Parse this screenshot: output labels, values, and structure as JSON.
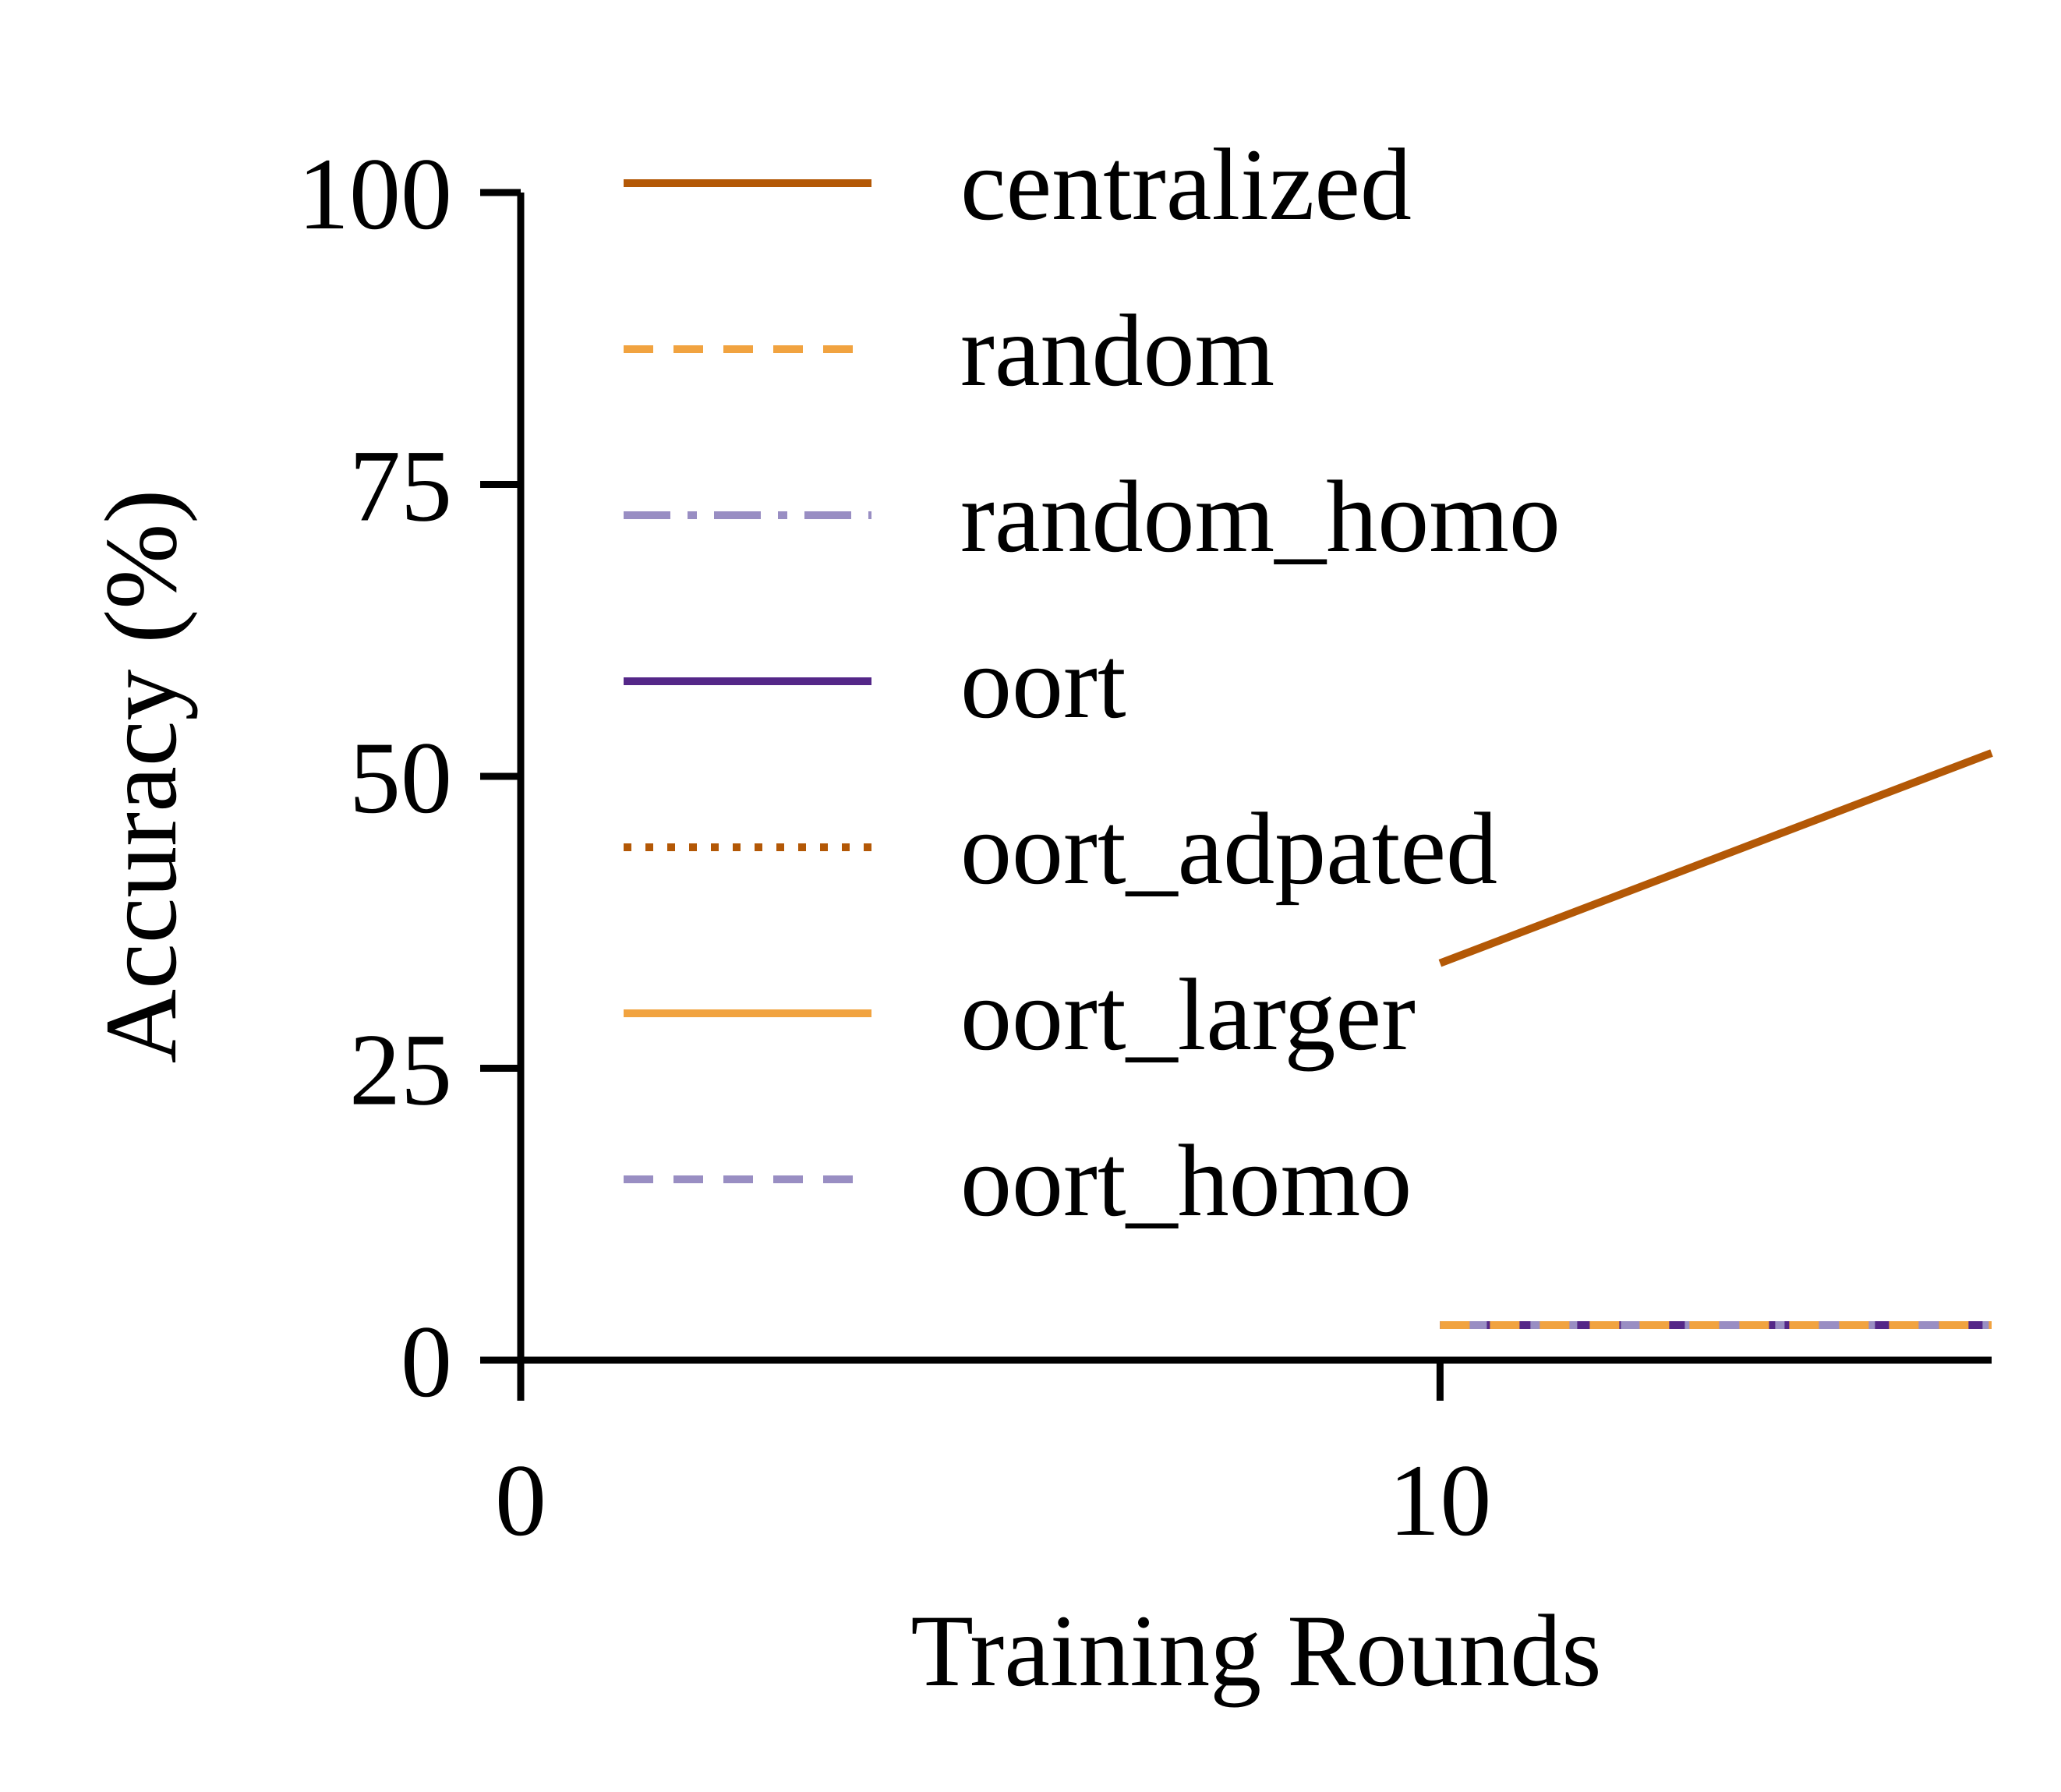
{
  "chart_data": {
    "type": "line",
    "title": "",
    "xlabel": "Training Rounds",
    "ylabel": "Accuracy (%)",
    "xlim": [
      0,
      16
    ],
    "ylim": [
      0,
      100
    ],
    "xticks": [
      0,
      10
    ],
    "yticks": [
      0,
      25,
      50,
      75,
      100
    ],
    "grid": false,
    "legend_position": "top-left",
    "series": [
      {
        "name": "centralized",
        "color": "#b35806",
        "dash": "solid",
        "x": [
          10,
          16
        ],
        "y": [
          34,
          52
        ]
      },
      {
        "name": "random",
        "color": "#f1a340",
        "dash": "dashed",
        "x": [
          10,
          16
        ],
        "y": [
          3,
          3
        ]
      },
      {
        "name": "random_homo",
        "color": "#998ec3",
        "dash": "dashdot",
        "x": [
          10,
          16
        ],
        "y": [
          3,
          3
        ]
      },
      {
        "name": "oort",
        "color": "#542788",
        "dash": "solid",
        "x": [
          10,
          16
        ],
        "y": [
          3,
          3
        ]
      },
      {
        "name": "oort_adpated",
        "color": "#b35806",
        "dash": "dotted",
        "x": [
          10,
          16
        ],
        "y": [
          3,
          3
        ]
      },
      {
        "name": "oort_larger",
        "color": "#f1a340",
        "dash": "solid",
        "x": [
          10,
          16
        ],
        "y": [
          3,
          3
        ]
      },
      {
        "name": "oort_homo",
        "color": "#998ec3",
        "dash": "dashed",
        "x": [
          10,
          16
        ],
        "y": [
          3,
          3
        ]
      }
    ]
  }
}
